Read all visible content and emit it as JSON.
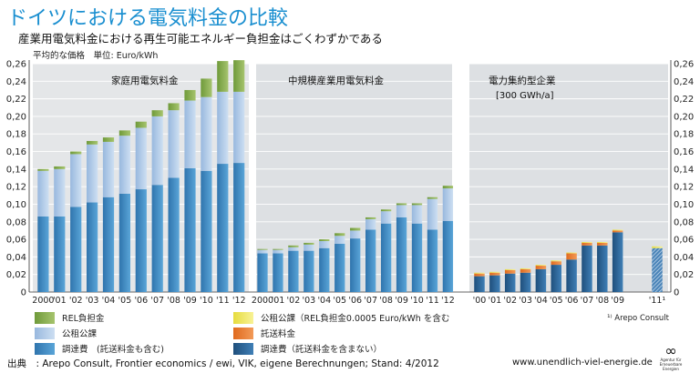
{
  "header": {
    "title": "ドイツにおける電気料金の比較",
    "subtitle": "産業用電気料金における再生可能エネルギー負担金はごくわずかである",
    "unit_line": "平均的な価格　単位: Euro/kWh"
  },
  "colors": {
    "eeg": "#8aac52",
    "taxes": "#b3cbe8",
    "procurement": "#3d8cc4",
    "reduced_levy": "#f2ea64",
    "grid_fee": "#e8782e",
    "procurement_industry": "#2a5f8f",
    "panel_household": "#e4e6e8",
    "panel_industry": "#dde0e3",
    "title_blue": "#1a8fd0"
  },
  "chart_data": {
    "type": "bar",
    "stacked": true,
    "ylim": [
      0,
      0.26
    ],
    "yticks": [
      "0",
      "0,02",
      "0,04",
      "0,06",
      "0,08",
      "0,10",
      "0,12",
      "0,14",
      "0,16",
      "0,18",
      "0,20",
      "0,22",
      "0,24",
      "0,26"
    ],
    "grid": true,
    "y_axis_both_sides": true,
    "panels": [
      {
        "label": "家庭用電気料金",
        "sublabel": "",
        "categories": [
          "2000",
          "'01",
          "'02",
          "'03",
          "'04",
          "'05",
          "'06",
          "'07",
          "'08",
          "'09",
          "'10",
          "'11",
          "'12"
        ],
        "series": [
          {
            "name": "調達費　(託送料金も含む)",
            "values": [
              0.086,
              0.086,
              0.097,
              0.102,
              0.108,
              0.112,
              0.117,
              0.122,
              0.13,
              0.141,
              0.138,
              0.146,
              0.147
            ]
          },
          {
            "name": "公租公課",
            "values": [
              0.052,
              0.054,
              0.06,
              0.066,
              0.063,
              0.066,
              0.07,
              0.078,
              0.077,
              0.077,
              0.084,
              0.082,
              0.081
            ]
          },
          {
            "name": "REL負担金",
            "values": [
              0.002,
              0.003,
              0.003,
              0.004,
              0.005,
              0.006,
              0.007,
              0.007,
              0.008,
              0.012,
              0.021,
              0.035,
              0.036
            ]
          }
        ]
      },
      {
        "label": "中規模産業用電気料金",
        "sublabel": "",
        "categories": [
          "2000",
          "'01",
          "'02",
          "'03",
          "'04",
          "'05",
          "'06",
          "'07",
          "'08",
          "'09",
          "'10",
          "'11",
          "'12"
        ],
        "series": [
          {
            "name": "調達費　(託送料金も含む)",
            "values": [
              0.044,
              0.044,
              0.047,
              0.047,
              0.05,
              0.055,
              0.061,
              0.071,
              0.078,
              0.085,
              0.078,
              0.071,
              0.081
            ]
          },
          {
            "name": "公租公課",
            "values": [
              0.004,
              0.004,
              0.004,
              0.007,
              0.008,
              0.009,
              0.009,
              0.012,
              0.014,
              0.014,
              0.021,
              0.035,
              0.037
            ]
          },
          {
            "name": "REL負担金",
            "values": [
              0.001,
              0.001,
              0.002,
              0.002,
              0.002,
              0.003,
              0.003,
              0.002,
              0.002,
              0.002,
              0.002,
              0.002,
              0.003
            ]
          }
        ]
      },
      {
        "label": "電力集約型企業",
        "sublabel": "[300 GWh/a]",
        "categories": [
          "'00",
          "'01",
          "'02",
          "'03",
          "'04",
          "'05",
          "'06",
          "'07",
          "'08",
          "'09",
          "",
          "'11¹"
        ],
        "series": [
          {
            "name": "調達費（託送料金を含まない）",
            "values": [
              0.018,
              0.019,
              0.021,
              0.022,
              0.026,
              0.031,
              0.037,
              0.053,
              0.053,
              0.068,
              null,
              0.05
            ]
          },
          {
            "name": "託送料金",
            "values": [
              0.003,
              0.003,
              0.004,
              0.004,
              0.004,
              0.004,
              0.007,
              0.003,
              0.003,
              0.002,
              null,
              0.0
            ]
          },
          {
            "name": "公租公課（REL負担金0.0005 Euro/kWh を含む",
            "values": [
              0.001,
              0.001,
              0.001,
              0.001,
              0.001,
              0.001,
              0.001,
              0.001,
              0.001,
              0.001,
              null,
              0.002
            ]
          }
        ]
      }
    ]
  },
  "legend": [
    {
      "label": "REL負担金",
      "color_key": "eeg"
    },
    {
      "label": "公租公課",
      "color_key": "taxes"
    },
    {
      "label": "調達費　(託送料金も含む)",
      "color_key": "procurement"
    },
    {
      "label": "公租公課（REL負担金0.0005 Euro/kWh を含む",
      "color_key": "reduced_levy"
    },
    {
      "label": "託送料金",
      "color_key": "grid_fee"
    },
    {
      "label": "調達費（託送料金を含まない）",
      "color_key": "procurement_industry"
    }
  ],
  "footnote": "¹⁾ Arepo Consult",
  "source": "出典　: Arepo Consult, Frontier economics / ewi, VIK, eigene Berechnungen; Stand: 4/2012",
  "website": "www.unendlich-viel-energie.de",
  "logo": {
    "symbol": "∞",
    "text": "Agentur für Erneuerbare Energien"
  }
}
